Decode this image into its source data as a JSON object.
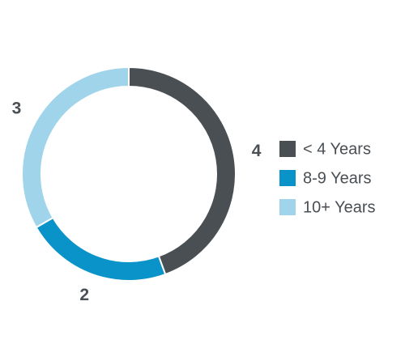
{
  "chart_data": {
    "type": "pie",
    "donut": true,
    "categories": [
      "< 4 Years",
      "8-9 Years",
      "10+ Years"
    ],
    "values": [
      4,
      2,
      3
    ],
    "colors": [
      "#4a4f54",
      "#0a93c9",
      "#9fd4ea"
    ],
    "legend": "right"
  }
}
